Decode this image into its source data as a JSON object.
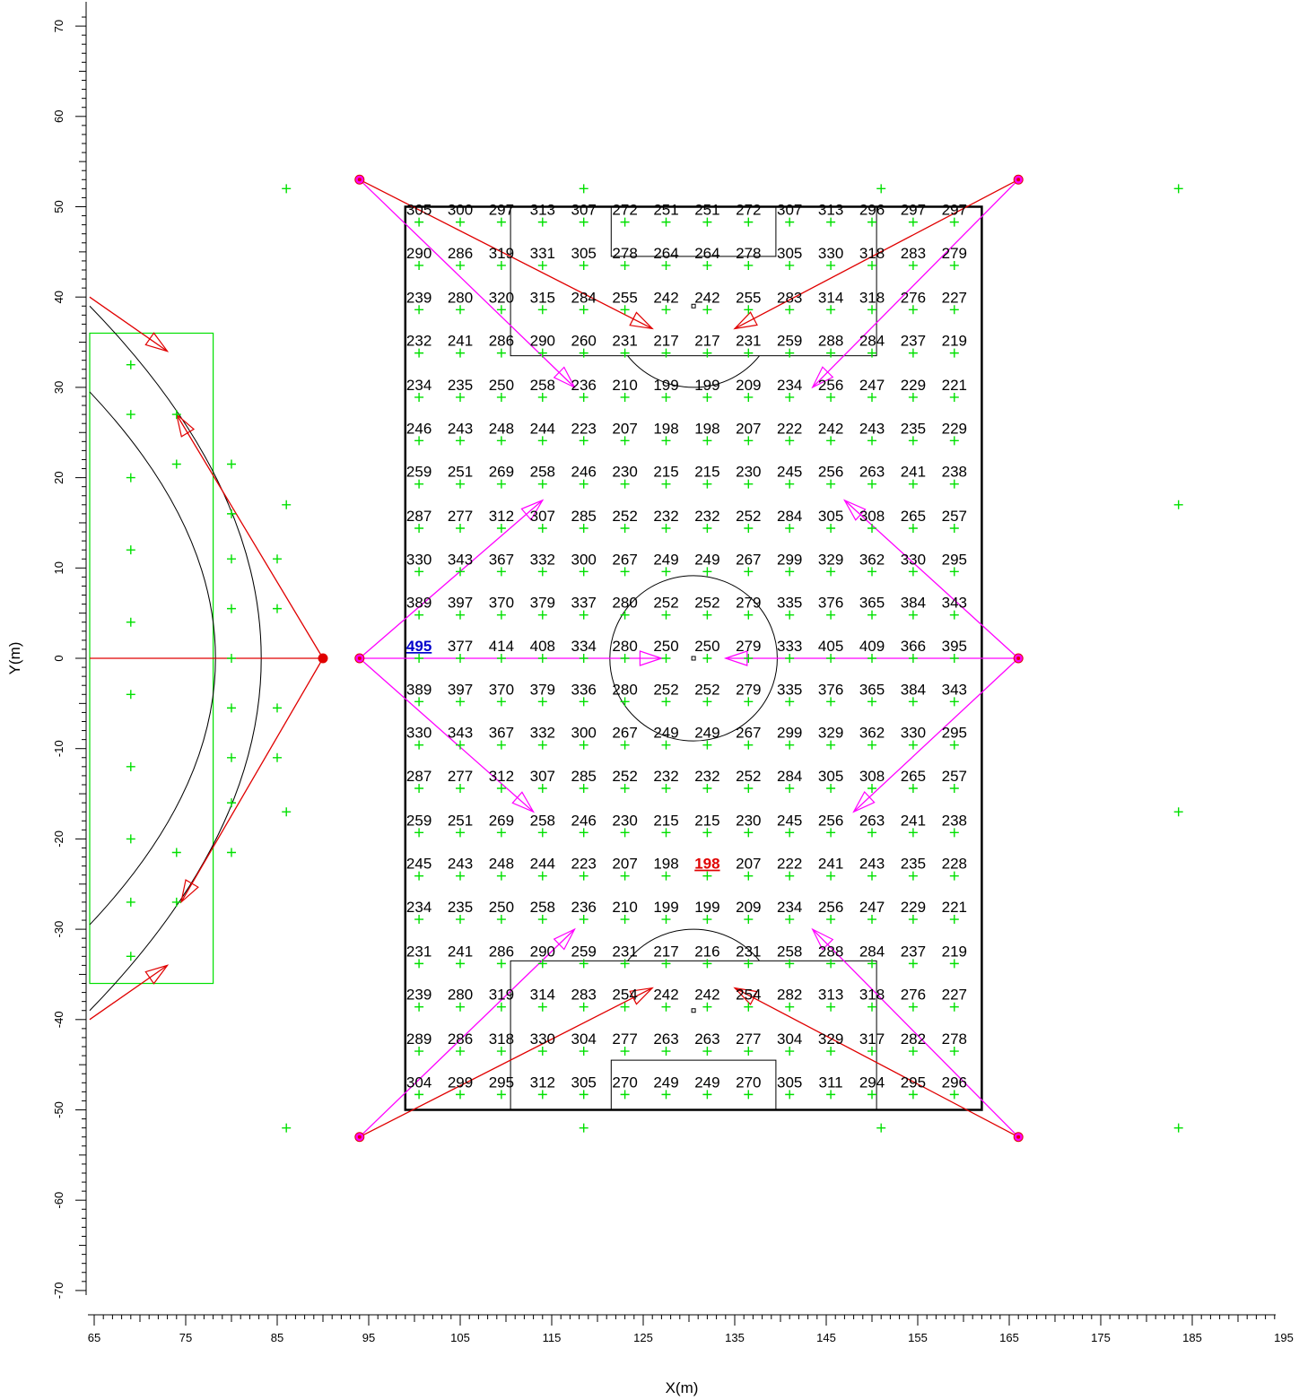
{
  "chart_data": {
    "type": "table",
    "xlabel": "X(m)",
    "ylabel": "Y(m)",
    "x_tick_labels": [
      "65",
      "75",
      "85",
      "95",
      "105",
      "115",
      "125",
      "135",
      "145",
      "155",
      "165",
      "175",
      "185",
      "195"
    ],
    "y_tick_labels": [
      "70",
      "60",
      "50",
      "40",
      "30",
      "20",
      "10",
      "0",
      "-10",
      "-20",
      "-30",
      "-40",
      "-50",
      "-60",
      "-70"
    ],
    "xlim": [
      63,
      196
    ],
    "ylim": [
      -73,
      72
    ],
    "grid_x": [
      100.5,
      105,
      109.5,
      114,
      118.5,
      123,
      127.5,
      132,
      136.5,
      141,
      145.5,
      150,
      154.5,
      159
    ],
    "grid_y": [
      48.3,
      43.5,
      38.6,
      33.8,
      28.9,
      24.1,
      19.3,
      14.4,
      9.6,
      4.8,
      0,
      -4.8,
      -9.6,
      -14.4,
      -19.3,
      -24.1,
      -28.9,
      -33.8,
      -38.6,
      -43.5,
      -48.3
    ],
    "rows": [
      [
        "305",
        "300",
        "297",
        "313",
        "307",
        "272",
        "251",
        "251",
        "272",
        "307",
        "313",
        "296",
        "297",
        "297"
      ],
      [
        "290",
        "286",
        "319",
        "331",
        "305",
        "278",
        "264",
        "264",
        "278",
        "305",
        "330",
        "318",
        "283",
        "279"
      ],
      [
        "239",
        "280",
        "320",
        "315",
        "284",
        "255",
        "242",
        "242",
        "255",
        "283",
        "314",
        "318",
        "276",
        "227"
      ],
      [
        "232",
        "241",
        "286",
        "290",
        "260",
        "231",
        "217",
        "217",
        "231",
        "259",
        "288",
        "284",
        "237",
        "219"
      ],
      [
        "234",
        "235",
        "250",
        "258",
        "236",
        "210",
        "199",
        "199",
        "209",
        "234",
        "256",
        "247",
        "229",
        "221"
      ],
      [
        "246",
        "243",
        "248",
        "244",
        "223",
        "207",
        "198",
        "198",
        "207",
        "222",
        "242",
        "243",
        "235",
        "229"
      ],
      [
        "259",
        "251",
        "269",
        "258",
        "246",
        "230",
        "215",
        "215",
        "230",
        "245",
        "256",
        "263",
        "241",
        "238"
      ],
      [
        "287",
        "277",
        "312",
        "307",
        "285",
        "252",
        "232",
        "232",
        "252",
        "284",
        "305",
        "308",
        "265",
        "257"
      ],
      [
        "330",
        "343",
        "367",
        "332",
        "300",
        "267",
        "249",
        "249",
        "267",
        "299",
        "329",
        "362",
        "330",
        "295"
      ],
      [
        "389",
        "397",
        "370",
        "379",
        "337",
        "280",
        "252",
        "252",
        "279",
        "335",
        "376",
        "365",
        "384",
        "343"
      ],
      [
        "495",
        "377",
        "414",
        "408",
        "334",
        "280",
        "250",
        "250",
        "279",
        "333",
        "405",
        "409",
        "366",
        "395"
      ],
      [
        "389",
        "397",
        "370",
        "379",
        "336",
        "280",
        "252",
        "252",
        "279",
        "335",
        "376",
        "365",
        "384",
        "343"
      ],
      [
        "330",
        "343",
        "367",
        "332",
        "300",
        "267",
        "249",
        "249",
        "267",
        "299",
        "329",
        "362",
        "330",
        "295"
      ],
      [
        "287",
        "277",
        "312",
        "307",
        "285",
        "252",
        "232",
        "232",
        "252",
        "284",
        "305",
        "308",
        "265",
        "257"
      ],
      [
        "259",
        "251",
        "269",
        "258",
        "246",
        "230",
        "215",
        "215",
        "230",
        "245",
        "256",
        "263",
        "241",
        "238"
      ],
      [
        "245",
        "243",
        "248",
        "244",
        "223",
        "207",
        "198",
        "198",
        "207",
        "222",
        "241",
        "243",
        "235",
        "228"
      ],
      [
        "234",
        "235",
        "250",
        "258",
        "236",
        "210",
        "199",
        "199",
        "209",
        "234",
        "256",
        "247",
        "229",
        "221"
      ],
      [
        "231",
        "241",
        "286",
        "290",
        "259",
        "231",
        "217",
        "216",
        "231",
        "258",
        "288",
        "284",
        "237",
        "219"
      ],
      [
        "239",
        "280",
        "319",
        "314",
        "283",
        "254",
        "242",
        "242",
        "254",
        "282",
        "313",
        "318",
        "276",
        "227"
      ],
      [
        "289",
        "286",
        "318",
        "330",
        "304",
        "277",
        "263",
        "263",
        "277",
        "304",
        "329",
        "317",
        "282",
        "278"
      ],
      [
        "304",
        "299",
        "295",
        "312",
        "305",
        "270",
        "249",
        "249",
        "270",
        "305",
        "311",
        "294",
        "295",
        "296"
      ]
    ],
    "max_cell": {
      "row": 10,
      "col": 0,
      "value": "495"
    },
    "min_cell": {
      "row": 15,
      "col": 7,
      "value": "198"
    },
    "field_rect": {
      "x": [
        99,
        162
      ],
      "y": [
        -50,
        50
      ]
    },
    "poles": [
      [
        94,
        53
      ],
      [
        166,
        53
      ],
      [
        94,
        0
      ],
      [
        166,
        0
      ],
      [
        94,
        -53
      ],
      [
        166,
        -53
      ],
      [
        90,
        0
      ]
    ],
    "outside_points": [
      [
        86,
        52
      ],
      [
        118.5,
        52
      ],
      [
        151,
        52
      ],
      [
        183.5,
        52
      ],
      [
        86,
        -52
      ],
      [
        118.5,
        -52
      ],
      [
        151,
        -52
      ],
      [
        183.5,
        -52
      ],
      [
        86,
        17
      ],
      [
        86,
        -17
      ],
      [
        183.5,
        17
      ],
      [
        183.5,
        -17
      ],
      [
        69,
        32.5
      ],
      [
        69,
        27
      ],
      [
        69,
        20
      ],
      [
        69,
        12
      ],
      [
        69,
        4
      ],
      [
        69,
        -4
      ],
      [
        69,
        -12
      ],
      [
        69,
        -20
      ],
      [
        69,
        -27
      ],
      [
        69,
        -33
      ],
      [
        74,
        27
      ],
      [
        74,
        21.5
      ],
      [
        74,
        -21.5
      ],
      [
        74,
        -27
      ],
      [
        80,
        21.5
      ],
      [
        80,
        16
      ],
      [
        80,
        11
      ],
      [
        80,
        5.5
      ],
      [
        80,
        0
      ],
      [
        80,
        -5.5
      ],
      [
        80,
        -11
      ],
      [
        80,
        -16
      ],
      [
        80,
        -21.5
      ],
      [
        85,
        11
      ],
      [
        85,
        5.5
      ],
      [
        85,
        -5.5
      ],
      [
        85,
        -11
      ]
    ],
    "colors": {
      "grid_point": "#00e000",
      "aim_red": "#e00000",
      "aim_magenta": "#ff00ff",
      "field_line": "#000000",
      "max_value": "#0000cc",
      "min_value": "#e00000"
    }
  }
}
